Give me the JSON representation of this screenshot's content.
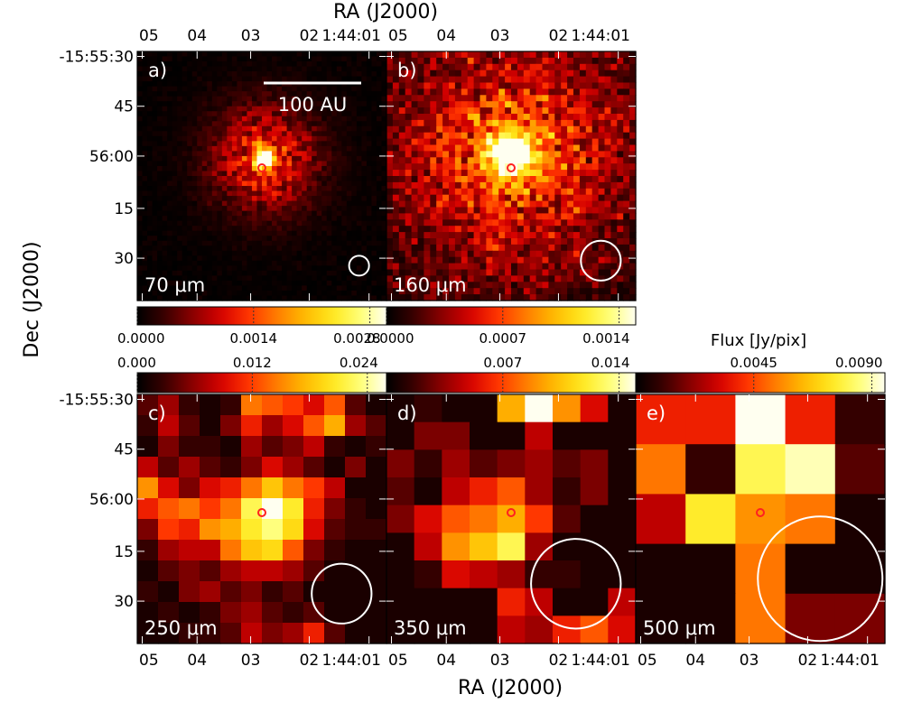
{
  "figure": {
    "top_axis_label": "RA (J2000)",
    "bottom_axis_label": "RA (J2000)",
    "left_axis_label": "Dec (J2000)",
    "colorbar_title": "Flux [Jy/pix]",
    "scalebar_label": "100 AU",
    "micron_unit": "μm"
  },
  "colormap": [
    "#000000",
    "#3a0000",
    "#8b0000",
    "#d40000",
    "#ff3300",
    "#ff7a00",
    "#ffb700",
    "#ffe61a",
    "#ffff70",
    "#fffff0"
  ],
  "accent": {
    "source_marker": "#ff2020",
    "beam": "#ffffff",
    "scalebar": "#ffffff"
  },
  "chart_data": [
    {
      "type": "heatmap",
      "panel": "a)",
      "band": "70",
      "grid": 50,
      "ra_ticks": [
        "05",
        "04",
        "03",
        "02",
        "1:44:01"
      ],
      "dec_ticks": [
        "-15:55:30",
        "45",
        "56:00",
        "15",
        "30"
      ],
      "source": "compact bright peak at centre",
      "peak_x": 25,
      "peak_y": 21,
      "peak_sigma": 1.5,
      "noise": 0.05,
      "beam_radius_frac": 0.04,
      "beam_center": [
        0.89,
        0.86
      ],
      "colorbar": {
        "ticks": [
          "0.0000",
          "0.0014",
          "0.0028"
        ],
        "range": [
          0,
          0.003
        ]
      },
      "scalebar": true
    },
    {
      "type": "heatmap",
      "panel": "b)",
      "band": "160",
      "grid": 40,
      "ra_ticks": [
        "05",
        "04",
        "03",
        "02",
        "1:44:01"
      ],
      "source": "extended peak at centre",
      "peak_x": 19.5,
      "peak_y": 16,
      "peak_sigma": 2.6,
      "noise": 0.28,
      "beam_radius_frac": 0.08,
      "beam_center": [
        0.86,
        0.84
      ],
      "colorbar": {
        "ticks": [
          "0.0000",
          "0.0007",
          "0.0014"
        ],
        "range": [
          0,
          0.0015
        ]
      }
    },
    {
      "type": "heatmap",
      "panel": "c)",
      "band": "250",
      "grid": 12,
      "ra_ticks": [
        "05",
        "04",
        "03",
        "02",
        "1:44:01"
      ],
      "dec_ticks": [
        "-15:55:30",
        "45",
        "56:00",
        "15",
        "30"
      ],
      "beam_radius_frac": 0.12,
      "beam_center": [
        0.82,
        0.8
      ],
      "colorbar": {
        "ticks": [
          "0.000",
          "0.012",
          "0.024"
        ],
        "range": [
          0,
          0.026
        ]
      },
      "values": [
        [
          0.15,
          0.25,
          0.1,
          0.05,
          0.1,
          0.55,
          0.5,
          0.45,
          0.35,
          0.5,
          0.15,
          0.05
        ],
        [
          0.1,
          0.3,
          0.15,
          0.05,
          0.2,
          0.4,
          0.25,
          0.35,
          0.5,
          0.65,
          0.25,
          0.15
        ],
        [
          0.05,
          0.2,
          0.1,
          0.1,
          0.05,
          0.25,
          0.15,
          0.2,
          0.3,
          0.1,
          0.05,
          0.1
        ],
        [
          0.3,
          0.15,
          0.25,
          0.15,
          0.1,
          0.2,
          0.35,
          0.25,
          0.15,
          0.05,
          0.2,
          0.05
        ],
        [
          0.6,
          0.35,
          0.2,
          0.35,
          0.4,
          0.55,
          0.7,
          0.55,
          0.45,
          0.3,
          0.05,
          0.05
        ],
        [
          0.4,
          0.5,
          0.55,
          0.45,
          0.55,
          0.85,
          1.0,
          0.8,
          0.4,
          0.2,
          0.1,
          0.05
        ],
        [
          0.2,
          0.45,
          0.4,
          0.6,
          0.65,
          0.8,
          0.9,
          0.75,
          0.35,
          0.15,
          0.1,
          0.1
        ],
        [
          0.1,
          0.25,
          0.3,
          0.3,
          0.55,
          0.7,
          0.75,
          0.5,
          0.2,
          0.1,
          0.05,
          0.05
        ],
        [
          0.05,
          0.15,
          0.2,
          0.15,
          0.25,
          0.3,
          0.3,
          0.25,
          0.15,
          0.05,
          0.05,
          0.05
        ],
        [
          0.1,
          0.05,
          0.2,
          0.25,
          0.15,
          0.2,
          0.1,
          0.15,
          0.05,
          0.05,
          0.05,
          0.05
        ],
        [
          0.05,
          0.1,
          0.05,
          0.1,
          0.2,
          0.25,
          0.15,
          0.1,
          0.15,
          0.05,
          0.05,
          0.05
        ],
        [
          0.05,
          0.05,
          0.1,
          0.1,
          0.15,
          0.3,
          0.2,
          0.25,
          0.4,
          0.15,
          0.05,
          0.05
        ]
      ]
    },
    {
      "type": "heatmap",
      "panel": "d)",
      "band": "350",
      "grid": 9,
      "ra_ticks": [
        "05",
        "04",
        "03",
        "02",
        "1:44:01"
      ],
      "beam_radius_frac": 0.18,
      "beam_center": [
        0.76,
        0.76
      ],
      "colorbar": {
        "ticks": [
          "0.007",
          "0.014"
        ],
        "range": [
          0,
          0.015
        ]
      },
      "values": [
        [
          0.05,
          0.1,
          0.05,
          0.05,
          0.65,
          1.0,
          0.6,
          0.35,
          0.05
        ],
        [
          0.05,
          0.2,
          0.2,
          0.05,
          0.05,
          0.3,
          0.05,
          0.05,
          0.05
        ],
        [
          0.2,
          0.1,
          0.25,
          0.15,
          0.2,
          0.25,
          0.15,
          0.2,
          0.05
        ],
        [
          0.15,
          0.05,
          0.3,
          0.4,
          0.5,
          0.25,
          0.1,
          0.2,
          0.05
        ],
        [
          0.2,
          0.35,
          0.5,
          0.55,
          0.65,
          0.45,
          0.15,
          0.05,
          0.05
        ],
        [
          0.05,
          0.3,
          0.6,
          0.7,
          0.85,
          0.25,
          0.05,
          0.05,
          0.05
        ],
        [
          0.05,
          0.1,
          0.35,
          0.3,
          0.25,
          0.1,
          0.1,
          0.05,
          0.05
        ],
        [
          0.05,
          0.05,
          0.05,
          0.05,
          0.4,
          0.3,
          0.05,
          0.05,
          0.3
        ],
        [
          0.05,
          0.05,
          0.05,
          0.05,
          0.3,
          0.25,
          0.4,
          0.5,
          0.35
        ]
      ]
    },
    {
      "type": "heatmap",
      "panel": "e)",
      "band": "500",
      "grid": 5,
      "ra_ticks": [
        "05",
        "04",
        "03",
        "02",
        "1:44:01"
      ],
      "beam_radius_frac": 0.25,
      "beam_center": [
        0.74,
        0.74
      ],
      "colorbar": {
        "title": "Flux [Jy/pix]",
        "ticks": [
          "0.0045",
          "0.0090"
        ],
        "range": [
          0,
          0.0095
        ]
      },
      "values": [
        [
          0.4,
          0.4,
          1.0,
          0.4,
          0.1
        ],
        [
          0.55,
          0.1,
          0.85,
          0.95,
          0.15
        ],
        [
          0.3,
          0.8,
          0.6,
          0.55,
          0.05
        ],
        [
          0.05,
          0.05,
          0.55,
          0.05,
          0.05
        ],
        [
          0.05,
          0.05,
          0.55,
          0.2,
          0.2
        ]
      ]
    }
  ]
}
